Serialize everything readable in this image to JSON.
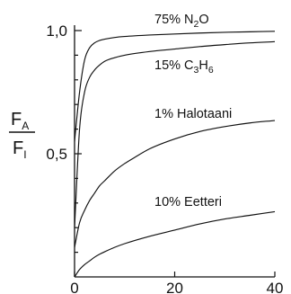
{
  "chart_data": {
    "type": "line",
    "title": "",
    "xlabel": "",
    "ylabel": {
      "numerator": "F",
      "numerator_sub": "A",
      "denominator": "F",
      "denominator_sub": "I"
    },
    "xlim": [
      0,
      40
    ],
    "ylim": [
      0,
      1.0
    ],
    "x_ticks": [
      0,
      20,
      40
    ],
    "x_tick_labels": [
      "0",
      "20",
      "40"
    ],
    "y_ticks": [
      0.5,
      1.0
    ],
    "y_tick_labels": [
      "0,5",
      "1,0"
    ],
    "y_minor_ticks": [
      0.1,
      0.2,
      0.3,
      0.4,
      0.6,
      0.7,
      0.8,
      0.9
    ],
    "grid": false,
    "legend": "none (series labeled inline)",
    "series": [
      {
        "label": {
          "text": "75% N",
          "sub": "2",
          "tail": "O"
        },
        "points": [
          [
            0,
            0.55
          ],
          [
            1,
            0.75
          ],
          [
            2,
            0.88
          ],
          [
            3,
            0.93
          ],
          [
            4,
            0.95
          ],
          [
            5,
            0.96
          ],
          [
            6,
            0.965
          ],
          [
            8,
            0.972
          ],
          [
            10,
            0.976
          ],
          [
            15,
            0.982
          ],
          [
            20,
            0.986
          ],
          [
            25,
            0.99
          ],
          [
            30,
            0.993
          ],
          [
            35,
            0.995
          ],
          [
            40,
            0.997
          ]
        ]
      },
      {
        "label": {
          "text": "15% C",
          "sub": "3",
          "text2": "H",
          "sub2": "6"
        },
        "points": [
          [
            0,
            0.2
          ],
          [
            1,
            0.6
          ],
          [
            2,
            0.75
          ],
          [
            3,
            0.81
          ],
          [
            4,
            0.84
          ],
          [
            5,
            0.86
          ],
          [
            6,
            0.875
          ],
          [
            8,
            0.89
          ],
          [
            10,
            0.9
          ],
          [
            15,
            0.915
          ],
          [
            20,
            0.925
          ],
          [
            25,
            0.935
          ],
          [
            30,
            0.943
          ],
          [
            35,
            0.95
          ],
          [
            40,
            0.955
          ]
        ]
      },
      {
        "label": {
          "text": "1% Halotaani"
        },
        "points": [
          [
            0,
            0.12
          ],
          [
            1,
            0.22
          ],
          [
            2,
            0.27
          ],
          [
            3,
            0.31
          ],
          [
            4,
            0.34
          ],
          [
            5,
            0.37
          ],
          [
            6,
            0.39
          ],
          [
            8,
            0.43
          ],
          [
            10,
            0.46
          ],
          [
            12,
            0.485
          ],
          [
            15,
            0.52
          ],
          [
            20,
            0.56
          ],
          [
            25,
            0.59
          ],
          [
            30,
            0.61
          ],
          [
            35,
            0.625
          ],
          [
            40,
            0.635
          ]
        ]
      },
      {
        "label": {
          "text": "10% Eetteri"
        },
        "points": [
          [
            0,
            0.0
          ],
          [
            1,
            0.03
          ],
          [
            2,
            0.05
          ],
          [
            3,
            0.065
          ],
          [
            4,
            0.08
          ],
          [
            5,
            0.092
          ],
          [
            6,
            0.102
          ],
          [
            8,
            0.12
          ],
          [
            10,
            0.135
          ],
          [
            15,
            0.165
          ],
          [
            20,
            0.19
          ],
          [
            25,
            0.215
          ],
          [
            30,
            0.235
          ],
          [
            35,
            0.25
          ],
          [
            40,
            0.265
          ]
        ]
      }
    ]
  }
}
